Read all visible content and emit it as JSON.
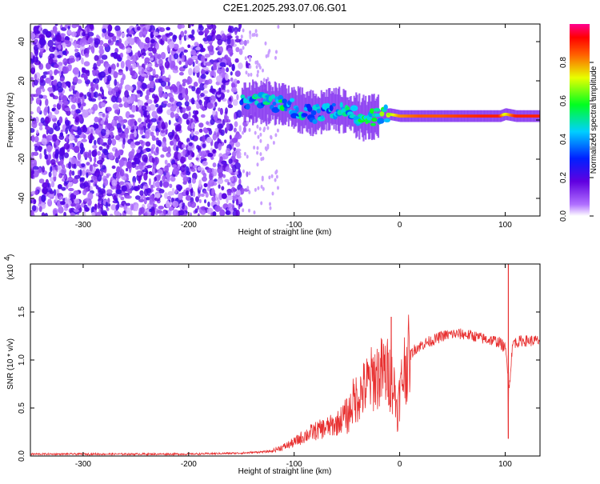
{
  "chart_data": [
    {
      "type": "heatmap",
      "title": "C2E1.2025.293.07.06.G01",
      "xlabel": "Height of straight line (km)",
      "ylabel": "Frequency (Hz)",
      "xlim": [
        -350,
        133
      ],
      "ylim": [
        -49,
        49
      ],
      "xticks": [
        -300,
        -200,
        -100,
        0,
        100
      ],
      "yticks": [
        -40,
        -20,
        0,
        20,
        40
      ],
      "xtick_labels": [
        "-300",
        "-200",
        "-100",
        "0",
        "100"
      ],
      "ytick_labels": [
        "-40",
        "-20",
        "0",
        "20",
        "40"
      ],
      "colorbar": {
        "label": "Normalized spectral amplitude",
        "range": [
          0.0,
          1.0
        ],
        "ticks": [
          0.0,
          0.2,
          0.4,
          0.6,
          0.8
        ],
        "tick_labels": [
          "0.0",
          "0.2",
          "0.4",
          "0.6",
          "0.8"
        ],
        "colormap": "rainbow (purple-blue-cyan-green-yellow-red-magenta)"
      },
      "ridge": {
        "description": "main spectral ridge",
        "x": [
          -150,
          -130,
          -110,
          -95,
          -80,
          -65,
          -50,
          -35,
          -20,
          -10,
          0,
          20,
          40,
          60,
          80,
          95,
          100,
          110,
          133
        ],
        "freq": [
          9,
          9,
          8,
          5,
          3,
          6,
          4,
          1,
          2,
          3,
          2,
          2,
          2,
          2,
          2,
          2,
          3,
          2,
          2
        ],
        "amplitude": [
          0.45,
          0.5,
          0.55,
          0.5,
          0.45,
          0.45,
          0.5,
          0.55,
          0.6,
          0.65,
          0.8,
          0.85,
          0.85,
          0.88,
          0.9,
          0.9,
          0.7,
          0.9,
          0.9
        ]
      }
    },
    {
      "type": "line",
      "xlabel": "Height of straight line (km)",
      "ylabel": "SNR (10 * v/v)",
      "scale_label": "(x10",
      "scale_exponent": "4",
      "xlim": [
        -350,
        133
      ],
      "ylim": [
        0,
        2.0
      ],
      "xticks": [
        -300,
        -200,
        -100,
        0,
        100
      ],
      "yticks": [
        0.0,
        0.5,
        1.0,
        1.5
      ],
      "xtick_labels": [
        "-300",
        "-200",
        "-100",
        "0",
        "100"
      ],
      "ytick_labels": [
        "0.0",
        "0.5",
        "1.0",
        "1.5"
      ],
      "series": [
        {
          "name": "SNR",
          "color": "#e83030",
          "x": [
            -350,
            -300,
            -250,
            -200,
            -150,
            -120,
            -110,
            -100,
            -90,
            -80,
            -70,
            -60,
            -50,
            -45,
            -40,
            -35,
            -30,
            -25,
            -20,
            -15,
            -10,
            -5,
            -2,
            0,
            5,
            10,
            15,
            20,
            25,
            30,
            35,
            40,
            50,
            60,
            70,
            80,
            90,
            95,
            100,
            102,
            104,
            106,
            108,
            110,
            115,
            120,
            133
          ],
          "y": [
            0.02,
            0.02,
            0.02,
            0.02,
            0.03,
            0.05,
            0.08,
            0.12,
            0.18,
            0.22,
            0.25,
            0.28,
            0.38,
            0.55,
            0.62,
            0.68,
            0.75,
            0.82,
            0.85,
            0.88,
            0.85,
            0.7,
            0.45,
            0.65,
            0.95,
            1.05,
            1.12,
            1.15,
            1.18,
            1.2,
            1.22,
            1.25,
            1.27,
            1.27,
            1.25,
            1.22,
            1.2,
            1.18,
            1.12,
            0.95,
            0.7,
            1.05,
            1.2,
            1.18,
            1.2,
            1.2,
            1.2
          ]
        }
      ],
      "peaks": [
        {
          "x": -8,
          "y": 1.45
        },
        {
          "x": 103,
          "y": 2.0
        },
        {
          "x": 103,
          "y": 0.18
        }
      ]
    }
  ]
}
